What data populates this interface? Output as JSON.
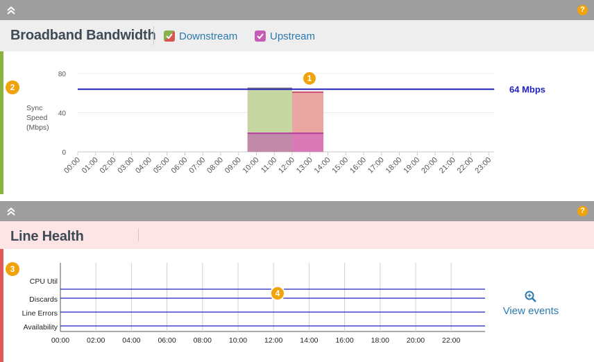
{
  "bandwidth_panel": {
    "title": "Broadband Bandwidth",
    "legend": {
      "downstream_label": "Downstream",
      "upstream_label": "Upstream",
      "downstream_checked": true,
      "upstream_checked": true
    },
    "badge_1": "1",
    "badge_2": "2",
    "help_icon": "?",
    "accent_color": "#8db33f"
  },
  "line_health_panel": {
    "title": "Line Health",
    "badge_3": "3",
    "badge_4": "4",
    "help_icon": "?",
    "accent_color": "#e05a5a",
    "view_events_label": "View events"
  },
  "chart_data": [
    {
      "type": "area",
      "ylabel": "Sync Speed (Mbps)",
      "ylim": [
        0,
        80
      ],
      "yticks": [
        "80",
        "40",
        "0"
      ],
      "ytick_values": [
        80,
        40,
        0
      ],
      "categories": [
        "00:00",
        "01:00",
        "02:00",
        "03:00",
        "04:00",
        "05:00",
        "06:00",
        "07:00",
        "08:00",
        "09:00",
        "10:00",
        "11:00",
        "12:00",
        "13:00",
        "14:00",
        "15:00",
        "16:00",
        "17:00",
        "18:00",
        "19:00",
        "20:00",
        "21:00",
        "22:00",
        "23:00"
      ],
      "reference_line": {
        "value": 64,
        "label": "64 Mbps",
        "color": "#1f1fbf"
      },
      "series": [
        {
          "name": "Downstream",
          "color": "#c3d59d",
          "segments": [
            {
              "start": "09:30",
              "end": "12:00",
              "value": 65
            },
            {
              "start": "12:00",
              "end": "13:45",
              "value": 61
            }
          ]
        },
        {
          "name": "Upstream",
          "color": "#d85fb0",
          "segments": [
            {
              "start": "09:30",
              "end": "13:45",
              "value": 19
            }
          ]
        }
      ],
      "segment_colors": {
        "downstream_a": "#c6d6a2",
        "downstream_b": "#eaa7a2",
        "upstream_a": "#c08aa8",
        "upstream_b": "#d97ab6"
      }
    },
    {
      "type": "line",
      "rows": [
        "CPU Util",
        "Discards",
        "Line Errors",
        "Availability"
      ],
      "xticks": [
        "00:00",
        "02:00",
        "04:00",
        "06:00",
        "08:00",
        "10:00",
        "12:00",
        "14:00",
        "16:00",
        "18:00",
        "20:00",
        "22:00"
      ],
      "line_color": "#1f1fbf"
    }
  ]
}
